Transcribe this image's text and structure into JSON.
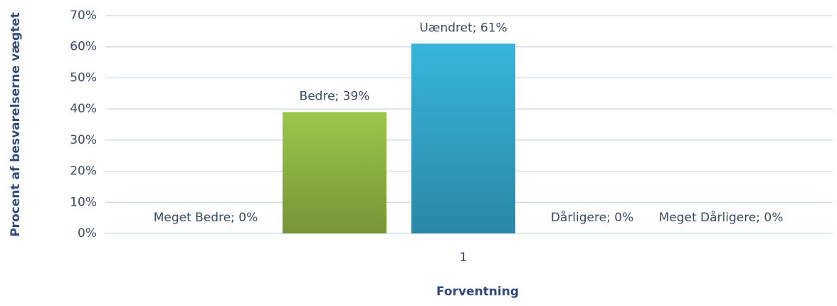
{
  "chart_data": {
    "type": "bar",
    "y_label": "Procent af besvarelserne vægtet",
    "x_label": "Forventning",
    "categories": [
      "1"
    ],
    "series": [
      {
        "name": "Meget Bedre",
        "color": "#2f9cc4",
        "values": [
          0
        ],
        "value_labels": [
          "Meget Bedre; 0%"
        ]
      },
      {
        "name": "Bedre",
        "color": "#9cc64a",
        "values": [
          39
        ],
        "value_labels": [
          "Bedre; 39%"
        ]
      },
      {
        "name": "Uændret",
        "color": "#37b5dc",
        "values": [
          61
        ],
        "value_labels": [
          "Uændret; 61%"
        ]
      },
      {
        "name": "Dårligere",
        "color": "#e07b39",
        "values": [
          0
        ],
        "value_labels": [
          "Dårligere; 0%"
        ]
      },
      {
        "name": "Meget Dårligere",
        "color": "#8c6bb1",
        "values": [
          0
        ],
        "value_labels": [
          "Meget Dårligere; 0%"
        ]
      }
    ],
    "ylim": [
      0,
      70
    ],
    "yticks": [
      {
        "value": 0,
        "label": "0%"
      },
      {
        "value": 10,
        "label": "10%"
      },
      {
        "value": 20,
        "label": "20%"
      },
      {
        "value": 30,
        "label": "30%"
      },
      {
        "value": 40,
        "label": "40%"
      },
      {
        "value": 50,
        "label": "50%"
      },
      {
        "value": 60,
        "label": "60%"
      },
      {
        "value": 70,
        "label": "70%"
      }
    ],
    "grid": true
  }
}
